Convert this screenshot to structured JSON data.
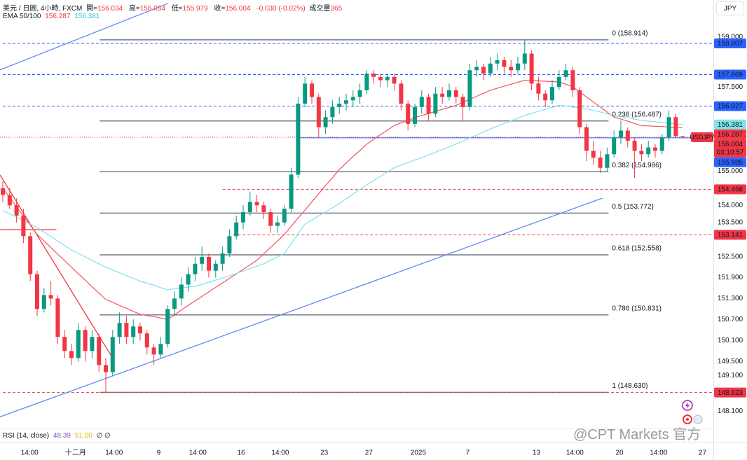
{
  "chart_data": {
    "type": "candlestick",
    "title": "美元 / 日圓, 4小時, FXCM",
    "ohlc_labels": [
      "開=",
      "高=",
      "低=",
      "收="
    ],
    "change": "-0.030 (-0.02%)",
    "volume_label": "成交量",
    "volume": 365,
    "indicator": "EMA 50/100",
    "currency": "JPY",
    "symbol": "USDJPY",
    "countdown": "03:10:57",
    "up_color": "#089981",
    "down_color": "#f23645",
    "ohlc": [
      [
        154.5,
        154.7,
        154.1,
        154.3
      ],
      [
        154.3,
        154.5,
        153.9,
        154.0
      ],
      [
        154.0,
        154.2,
        153.5,
        153.7
      ],
      [
        153.7,
        153.9,
        152.9,
        153.1
      ],
      [
        153.1,
        153.2,
        151.8,
        152.0
      ],
      [
        152.0,
        152.1,
        150.8,
        151.0
      ],
      [
        151.0,
        151.6,
        150.9,
        151.4
      ],
      [
        151.4,
        151.8,
        151.1,
        151.3
      ],
      [
        151.3,
        151.4,
        150.0,
        150.2
      ],
      [
        150.2,
        150.4,
        149.6,
        149.8
      ],
      [
        149.8,
        150.0,
        149.4,
        149.6
      ],
      [
        149.6,
        150.6,
        149.5,
        150.4
      ],
      [
        150.4,
        150.5,
        149.5,
        149.8
      ],
      [
        149.8,
        150.4,
        149.6,
        150.2
      ],
      [
        150.2,
        150.3,
        149.2,
        149.4
      ],
      [
        149.4,
        149.6,
        148.63,
        149.2
      ],
      [
        149.2,
        150.4,
        149.1,
        150.2
      ],
      [
        150.2,
        150.9,
        150.0,
        150.6
      ],
      [
        150.6,
        150.8,
        150.0,
        150.2
      ],
      [
        150.2,
        150.7,
        150.0,
        150.5
      ],
      [
        150.5,
        150.6,
        150.1,
        150.3
      ],
      [
        150.3,
        150.4,
        149.7,
        149.9
      ],
      [
        149.9,
        150.0,
        149.4,
        149.7
      ],
      [
        149.7,
        150.2,
        149.6,
        150.0
      ],
      [
        150.0,
        151.1,
        149.9,
        151.0
      ],
      [
        151.0,
        151.5,
        150.8,
        151.3
      ],
      [
        151.3,
        151.9,
        151.1,
        151.7
      ],
      [
        151.7,
        152.2,
        151.5,
        152.0
      ],
      [
        152.0,
        152.5,
        151.8,
        152.3
      ],
      [
        152.3,
        152.8,
        152.1,
        152.5
      ],
      [
        152.5,
        152.6,
        151.9,
        152.1
      ],
      [
        152.1,
        152.4,
        151.9,
        152.3
      ],
      [
        152.3,
        152.8,
        152.1,
        152.6
      ],
      [
        152.6,
        153.3,
        152.5,
        153.1
      ],
      [
        153.1,
        153.7,
        153.0,
        153.5
      ],
      [
        153.5,
        154.0,
        153.3,
        153.8
      ],
      [
        153.8,
        154.4,
        153.7,
        154.1
      ],
      [
        154.1,
        154.3,
        153.8,
        154.0
      ],
      [
        154.0,
        154.1,
        153.6,
        153.8
      ],
      [
        153.8,
        153.9,
        153.2,
        153.4
      ],
      [
        153.4,
        153.7,
        153.2,
        153.5
      ],
      [
        153.5,
        154.0,
        153.4,
        153.9
      ],
      [
        153.9,
        155.1,
        153.8,
        154.9
      ],
      [
        154.9,
        157.2,
        154.8,
        157.0
      ],
      [
        157.0,
        157.8,
        156.9,
        157.6
      ],
      [
        157.6,
        157.7,
        157.0,
        157.2
      ],
      [
        157.2,
        157.3,
        156.0,
        156.3
      ],
      [
        156.3,
        156.8,
        156.1,
        156.6
      ],
      [
        156.6,
        157.1,
        156.4,
        156.9
      ],
      [
        156.9,
        157.2,
        156.7,
        157.0
      ],
      [
        157.0,
        157.3,
        156.8,
        157.1
      ],
      [
        157.1,
        157.4,
        156.9,
        157.2
      ],
      [
        157.2,
        157.6,
        157.0,
        157.4
      ],
      [
        157.4,
        158.0,
        157.3,
        157.9
      ],
      [
        157.9,
        158.0,
        157.6,
        157.8
      ],
      [
        157.8,
        157.9,
        157.5,
        157.7
      ],
      [
        157.7,
        157.9,
        157.5,
        157.8
      ],
      [
        157.8,
        157.9,
        157.4,
        157.6
      ],
      [
        157.6,
        157.7,
        156.8,
        157.0
      ],
      [
        157.0,
        157.1,
        156.2,
        156.4
      ],
      [
        156.4,
        157.0,
        156.3,
        156.9
      ],
      [
        156.9,
        157.4,
        156.7,
        157.2
      ],
      [
        157.2,
        157.3,
        156.5,
        156.7
      ],
      [
        156.7,
        157.5,
        156.6,
        157.3
      ],
      [
        157.3,
        157.5,
        157.0,
        157.2
      ],
      [
        157.2,
        157.6,
        157.1,
        157.4
      ],
      [
        157.4,
        157.5,
        157.0,
        157.2
      ],
      [
        157.2,
        157.3,
        156.5,
        156.9
      ],
      [
        156.9,
        158.2,
        156.8,
        158.0
      ],
      [
        158.0,
        158.3,
        157.8,
        158.1
      ],
      [
        158.1,
        158.2,
        157.7,
        157.9
      ],
      [
        157.9,
        158.4,
        157.8,
        158.2
      ],
      [
        158.2,
        158.5,
        158.0,
        158.3
      ],
      [
        158.3,
        158.4,
        157.9,
        158.1
      ],
      [
        158.1,
        158.3,
        157.8,
        158.0
      ],
      [
        158.0,
        158.4,
        157.9,
        158.2
      ],
      [
        158.2,
        158.914,
        158.0,
        158.5
      ],
      [
        158.5,
        158.6,
        157.4,
        157.6
      ],
      [
        157.6,
        157.8,
        157.1,
        157.3
      ],
      [
        157.3,
        157.4,
        156.9,
        157.1
      ],
      [
        157.1,
        157.7,
        157.0,
        157.5
      ],
      [
        157.5,
        158.0,
        157.4,
        157.8
      ],
      [
        157.8,
        158.2,
        157.7,
        158.0
      ],
      [
        158.0,
        158.1,
        157.2,
        157.4
      ],
      [
        157.4,
        157.5,
        156.1,
        156.3
      ],
      [
        156.3,
        156.4,
        155.3,
        155.6
      ],
      [
        155.6,
        155.9,
        155.2,
        155.4
      ],
      [
        155.4,
        155.6,
        154.95,
        155.1
      ],
      [
        155.1,
        155.7,
        155.0,
        155.5
      ],
      [
        155.5,
        156.2,
        155.4,
        156.0
      ],
      [
        156.0,
        156.5,
        155.8,
        156.2
      ],
      [
        156.2,
        156.3,
        155.7,
        155.9
      ],
      [
        155.9,
        156.0,
        154.8,
        155.6
      ],
      [
        155.6,
        155.8,
        155.3,
        155.5
      ],
      [
        155.5,
        155.9,
        155.4,
        155.7
      ],
      [
        155.7,
        155.8,
        155.4,
        155.6
      ],
      [
        155.6,
        156.1,
        155.5,
        156.0
      ],
      [
        156.0,
        156.8,
        155.9,
        156.6
      ],
      [
        156.6,
        156.7,
        156.0,
        156.034
      ],
      [
        156.034,
        156.034,
        155.979,
        156.004
      ]
    ],
    "series": [
      {
        "color": "#f7525f",
        "values": [
          154.5,
          154.23,
          153.96,
          153.69,
          153.42,
          153.15,
          152.96,
          152.77,
          152.58,
          152.39,
          152.2,
          152.01,
          151.83,
          151.64,
          151.46,
          151.27,
          151.19,
          151.1,
          151.02,
          150.93,
          150.85,
          150.81,
          150.78,
          150.74,
          150.7,
          150.83,
          150.97,
          151.1,
          151.23,
          151.36,
          151.49,
          151.62,
          151.75,
          151.88,
          152.01,
          152.14,
          152.27,
          152.4,
          152.59,
          152.78,
          152.96,
          153.15,
          153.39,
          153.63,
          153.86,
          154.1,
          154.34,
          154.58,
          154.81,
          155.05,
          155.24,
          155.43,
          155.61,
          155.8,
          155.94,
          156.08,
          156.21,
          156.35,
          156.43,
          156.5,
          156.58,
          156.65,
          156.71,
          156.77,
          156.83,
          156.89,
          156.95,
          157.04,
          157.13,
          157.22,
          157.31,
          157.4,
          157.46,
          157.52,
          157.58,
          157.64,
          157.7,
          157.69,
          157.68,
          157.67,
          157.66,
          157.65,
          157.58,
          157.5,
          157.35,
          157.2,
          157.05,
          156.9,
          156.75,
          156.6,
          156.54,
          156.48,
          156.41,
          156.35,
          156.34,
          156.33,
          156.32,
          156.3,
          156.29,
          156.287
        ]
      },
      {
        "color": "#7fe3ec",
        "values": [
          153.85,
          153.75,
          153.65,
          153.55,
          153.45,
          153.35,
          153.22,
          153.09,
          152.96,
          152.83,
          152.7,
          152.6,
          152.5,
          152.4,
          152.3,
          152.2,
          152.12,
          152.04,
          151.96,
          151.88,
          151.8,
          151.74,
          151.68,
          151.61,
          151.55,
          151.58,
          151.6,
          151.63,
          151.65,
          151.71,
          151.77,
          151.83,
          151.89,
          151.95,
          152.02,
          152.09,
          152.16,
          152.23,
          152.3,
          152.4,
          152.5,
          152.6,
          152.88,
          153.17,
          153.45,
          153.57,
          153.69,
          153.81,
          153.93,
          154.05,
          154.19,
          154.33,
          154.46,
          154.6,
          154.73,
          154.85,
          154.98,
          155.1,
          155.18,
          155.25,
          155.33,
          155.4,
          155.48,
          155.56,
          155.64,
          155.72,
          155.8,
          155.89,
          155.98,
          156.07,
          156.16,
          156.25,
          156.33,
          156.41,
          156.49,
          156.57,
          156.65,
          156.71,
          156.77,
          156.83,
          156.89,
          156.95,
          156.93,
          156.9,
          156.88,
          156.85,
          156.8,
          156.75,
          156.7,
          156.65,
          156.61,
          156.58,
          156.54,
          156.5,
          156.48,
          156.46,
          156.44,
          156.42,
          156.4,
          156.381
        ]
      }
    ],
    "ylim": [
      147.26,
      160.12
    ],
    "log_scale": true,
    "grid": false,
    "yticks": [
      {
        "value": 159,
        "label": "159.000"
      },
      {
        "value": 157.5,
        "label": "157.500"
      },
      {
        "value": 155,
        "label": "155.000"
      },
      {
        "value": 154,
        "label": "154.000"
      },
      {
        "value": 153.5,
        "label": "153.500"
      },
      {
        "value": 152.5,
        "label": "152.500"
      },
      {
        "value": 151.9,
        "label": "151.900"
      },
      {
        "value": 151.3,
        "label": "151.300"
      },
      {
        "value": 150.7,
        "label": "150.700"
      },
      {
        "value": 150.1,
        "label": "150.100"
      },
      {
        "value": 149.5,
        "label": "149.500"
      },
      {
        "value": 149.1,
        "label": "149.100"
      },
      {
        "value": 148.1,
        "label": "148.100"
      }
    ],
    "xticks": [
      {
        "value": 3.9,
        "label": "14:00"
      },
      {
        "value": 10.6,
        "label": "十二月"
      },
      {
        "value": 16.2,
        "label": "14:00"
      },
      {
        "value": 22.7,
        "label": "9"
      },
      {
        "value": 28.4,
        "label": "14:00"
      },
      {
        "value": 34.7,
        "label": "16"
      },
      {
        "value": 40.4,
        "label": "14:00"
      },
      {
        "value": 46.8,
        "label": "23"
      },
      {
        "value": 53.3,
        "label": "27"
      },
      {
        "value": 60.5,
        "label": "2025"
      },
      {
        "value": 67.7,
        "label": "7"
      },
      {
        "value": 77.7,
        "label": "13"
      },
      {
        "value": 83.3,
        "label": "14:00"
      },
      {
        "value": 89.8,
        "label": "20"
      },
      {
        "value": 95.5,
        "label": "14:00"
      },
      {
        "value": 101.9,
        "label": "27"
      }
    ],
    "levels": [
      {
        "value": 158.807,
        "color": "#2962ff",
        "from": 0,
        "dash": true
      },
      {
        "value": 157.869,
        "color": "#2962ff",
        "from": 0,
        "dash": true
      },
      {
        "value": 156.927,
        "color": "#2962ff",
        "from": 0,
        "dash": true
      },
      {
        "value": 155.985,
        "color": "#2962ff",
        "from": 43,
        "dash": false
      },
      {
        "value": 154.468,
        "color": "#f23645",
        "from": 32,
        "dash": true
      },
      {
        "value": 153.141,
        "color": "#f23645",
        "from": 33.5,
        "dash": true
      },
      {
        "value": 148.623,
        "color": "#f23645",
        "from": 0,
        "dash": true
      }
    ],
    "fib_range": [
      14.1,
      88.2
    ],
    "fib_color": "#787b86",
    "fib": [
      {
        "value": 158.914,
        "label": "0 (158.914)"
      },
      {
        "value": 156.487,
        "label": "0.236 (156.487)"
      },
      {
        "value": 154.986,
        "label": "0.382 (154.986)"
      },
      {
        "value": 153.772,
        "label": "0.5 (153.772)"
      },
      {
        "value": 152.558,
        "label": "0.618 (152.558)"
      },
      {
        "value": 150.831,
        "label": "0.786 (150.831)"
      },
      {
        "value": 148.63,
        "label": "1 (148.630)"
      }
    ],
    "trendlines": [
      {
        "color": "#5b8def",
        "from": [
          -0.4,
          158.01
        ],
        "to": [
          24.1,
          160.02
        ]
      },
      {
        "color": "#5b8def",
        "from": [
          -0.4,
          147.94
        ],
        "to": [
          87.3,
          154.21
        ]
      },
      {
        "color": "#f23645",
        "from": [
          -0.4,
          154.89
        ],
        "to": [
          15.9,
          149.63
        ]
      },
      {
        "color": "#f23645",
        "from": [
          -0.4,
          153.29
        ],
        "to": [
          7.8,
          153.29
        ]
      }
    ],
    "rsi": {
      "label": "RSI (14, close)",
      "value": 48.39,
      "ma": {
        "value": 51,
        "label": "51.00"
      },
      "extra": "∅ ∅"
    },
    "watermark": "@CPT Markets 官方"
  }
}
